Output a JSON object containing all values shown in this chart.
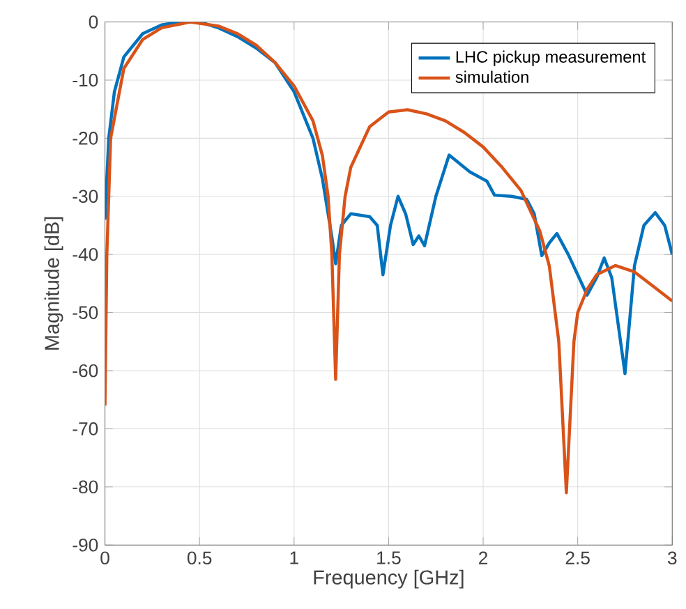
{
  "chart_data": {
    "type": "line",
    "xlabel": "Frequency [GHz]",
    "ylabel": "Magnitude [dB]",
    "xlim": [
      0,
      3
    ],
    "ylim": [
      -90,
      0
    ],
    "xticks": [
      0,
      0.5,
      1,
      1.5,
      2,
      2.5,
      3
    ],
    "yticks": [
      -90,
      -80,
      -70,
      -60,
      -50,
      -40,
      -30,
      -20,
      -10,
      0
    ],
    "grid": true,
    "legend": "top right",
    "line_style": "solid",
    "marker": "none",
    "series": [
      {
        "name": "LHC pickup measurement",
        "color": "#0072bd",
        "x": [
          0,
          0.02,
          0.05,
          0.1,
          0.2,
          0.3,
          0.4,
          0.5,
          0.6,
          0.7,
          0.8,
          0.9,
          1.0,
          1.1,
          1.15,
          1.2,
          1.22,
          1.25,
          1.3,
          1.4,
          1.44,
          1.47,
          1.51,
          1.55,
          1.59,
          1.63,
          1.66,
          1.69,
          1.75,
          1.82,
          1.93,
          2.02,
          2.06,
          2.15,
          2.23,
          2.27,
          2.31,
          2.35,
          2.39,
          2.45,
          2.55,
          2.6,
          2.64,
          2.68,
          2.75,
          2.8,
          2.85,
          2.91,
          2.96,
          3.0
        ],
        "values": [
          -34,
          -20,
          -12,
          -6,
          -2,
          -0.5,
          0,
          0,
          -1,
          -2.5,
          -4.5,
          -7,
          -12,
          -20,
          -27,
          -37,
          -41.6,
          -35,
          -33,
          -33.5,
          -35,
          -43.5,
          -35,
          -30,
          -33,
          -38.3,
          -36.8,
          -38.5,
          -30,
          -22.9,
          -25.8,
          -27.4,
          -29.8,
          -30,
          -30.5,
          -33,
          -40.2,
          -38,
          -36.4,
          -40,
          -47,
          -44,
          -40.6,
          -44,
          -60.5,
          -42,
          -35,
          -32.8,
          -35,
          -40
        ]
      },
      {
        "name": "simulation",
        "color": "#d95319",
        "x": [
          0,
          0.01,
          0.03,
          0.1,
          0.2,
          0.3,
          0.45,
          0.6,
          0.7,
          0.8,
          0.9,
          1.0,
          1.1,
          1.15,
          1.18,
          1.2,
          1.22,
          1.24,
          1.27,
          1.3,
          1.4,
          1.5,
          1.6,
          1.7,
          1.8,
          1.9,
          2.0,
          2.1,
          2.2,
          2.3,
          2.35,
          2.4,
          2.44,
          2.48,
          2.5,
          2.55,
          2.6,
          2.7,
          2.8,
          2.9,
          3.0
        ],
        "values": [
          -66,
          -40,
          -20,
          -8,
          -3,
          -1,
          0,
          -0.7,
          -2,
          -4,
          -7,
          -11,
          -17,
          -23,
          -30,
          -40,
          -61.5,
          -40,
          -30,
          -25,
          -18,
          -15.5,
          -15.1,
          -15.8,
          -17,
          -19,
          -21.5,
          -25,
          -29,
          -36,
          -42,
          -55,
          -81,
          -55,
          -50,
          -46,
          -43.5,
          -41.9,
          -43,
          -45.5,
          -48
        ]
      }
    ]
  }
}
